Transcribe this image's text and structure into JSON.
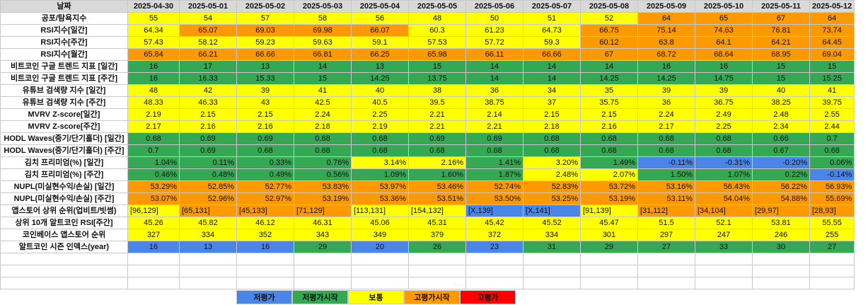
{
  "colors": {
    "blue": "#4a86e8",
    "green": "#34a853",
    "yellow": "#ffff00",
    "orange": "#ff9900",
    "red": "#ff0000",
    "white": "#ffffff",
    "header": "#d9d9d9"
  },
  "header": {
    "label": "날짜",
    "dates": [
      "2025-04-30",
      "2025-05-01",
      "2025-05-02",
      "2025-05-03",
      "2025-05-04",
      "2025-05-05",
      "2025-05-06",
      "2025-05-07",
      "2025-05-08",
      "2025-05-09",
      "2025-05-10",
      "2025-05-11",
      "2025-05-12"
    ]
  },
  "rows": [
    {
      "label": "공포/탐욕지수",
      "align": "c",
      "values": [
        "55",
        "54",
        "57",
        "58",
        "56",
        "48",
        "50",
        "51",
        "52",
        "64",
        "65",
        "67",
        "64"
      ],
      "colors": [
        "yellow",
        "yellow",
        "yellow",
        "yellow",
        "yellow",
        "yellow",
        "yellow",
        "yellow",
        "yellow",
        "orange",
        "orange",
        "orange",
        "orange"
      ]
    },
    {
      "label": "RSI지수[일간]",
      "align": "c",
      "values": [
        "64.34",
        "65.07",
        "69.03",
        "69.98",
        "66.07",
        "60.3",
        "61.23",
        "64.73",
        "66.75",
        "75.14",
        "74.63",
        "76.81",
        "73.74"
      ],
      "colors": [
        "yellow",
        "orange",
        "orange",
        "orange",
        "orange",
        "yellow",
        "yellow",
        "yellow",
        "orange",
        "orange",
        "orange",
        "orange",
        "orange"
      ]
    },
    {
      "label": "RSI지수[주간]",
      "align": "c",
      "values": [
        "57.43",
        "58.12",
        "59.23",
        "59.63",
        "59.1",
        "57.53",
        "57.72",
        "59.3",
        "60.12",
        "63.8",
        "64.1",
        "64.21",
        "64.45"
      ],
      "colors": [
        "yellow",
        "yellow",
        "yellow",
        "yellow",
        "yellow",
        "yellow",
        "yellow",
        "yellow",
        "orange",
        "orange",
        "orange",
        "orange",
        "orange"
      ]
    },
    {
      "label": "RSI지수[월간]",
      "align": "c",
      "values": [
        "65.84",
        "66.21",
        "66.66",
        "66.81",
        "66.25",
        "65.98",
        "66.11",
        "66.66",
        "67",
        "68.72",
        "68.64",
        "68.95",
        "69.04"
      ],
      "colors": [
        "orange",
        "orange",
        "orange",
        "orange",
        "orange",
        "orange",
        "orange",
        "orange",
        "orange",
        "orange",
        "orange",
        "orange",
        "orange"
      ]
    },
    {
      "label": "비트코인 구글 트렌드 지표 [일간]",
      "align": "c",
      "values": [
        "16",
        "17",
        "13",
        "14",
        "13",
        "15",
        "14",
        "14",
        "14",
        "16",
        "16",
        "15",
        "15"
      ],
      "colors": [
        "green",
        "green",
        "green",
        "green",
        "green",
        "green",
        "green",
        "green",
        "green",
        "green",
        "green",
        "green",
        "green"
      ]
    },
    {
      "label": "비트코인 구글 트렌드 지표 [주간]",
      "align": "c",
      "values": [
        "16",
        "16.33",
        "15.33",
        "15",
        "14.25",
        "13.75",
        "14",
        "14",
        "14.25",
        "14.25",
        "14.75",
        "15",
        "15.25"
      ],
      "colors": [
        "green",
        "green",
        "green",
        "green",
        "green",
        "green",
        "green",
        "green",
        "green",
        "green",
        "green",
        "green",
        "green"
      ]
    },
    {
      "label": "유튜브 검색량 지수 [일간]",
      "align": "c",
      "values": [
        "48",
        "42",
        "39",
        "41",
        "40",
        "38",
        "36",
        "34",
        "35",
        "39",
        "39",
        "40",
        "41"
      ],
      "colors": [
        "yellow",
        "yellow",
        "yellow",
        "yellow",
        "yellow",
        "yellow",
        "yellow",
        "yellow",
        "yellow",
        "yellow",
        "yellow",
        "yellow",
        "yellow"
      ]
    },
    {
      "label": "유튜브 검색량 지수 [주간]",
      "align": "c",
      "values": [
        "48.33",
        "46.33",
        "43",
        "42.5",
        "40.5",
        "39.5",
        "38.75",
        "37",
        "35.75",
        "36",
        "36.75",
        "38.25",
        "39.75"
      ],
      "colors": [
        "yellow",
        "yellow",
        "yellow",
        "yellow",
        "yellow",
        "yellow",
        "yellow",
        "yellow",
        "yellow",
        "yellow",
        "yellow",
        "yellow",
        "yellow"
      ]
    },
    {
      "label": "MVRV Z-score[일간]",
      "align": "c",
      "values": [
        "2.19",
        "2.15",
        "2.15",
        "2.24",
        "2.25",
        "2.21",
        "2.14",
        "2.15",
        "2.15",
        "2.24",
        "2.49",
        "2.48",
        "2.55"
      ],
      "colors": [
        "yellow",
        "yellow",
        "yellow",
        "yellow",
        "yellow",
        "yellow",
        "yellow",
        "yellow",
        "yellow",
        "yellow",
        "yellow",
        "yellow",
        "yellow"
      ]
    },
    {
      "label": "MVRV Z-score[주간]",
      "align": "c",
      "values": [
        "2.17",
        "2.16",
        "2.16",
        "2.18",
        "2.19",
        "2.21",
        "2.21",
        "2.18",
        "2.16",
        "2.17",
        "2.25",
        "2.34",
        "2.44"
      ],
      "colors": [
        "yellow",
        "yellow",
        "yellow",
        "yellow",
        "yellow",
        "yellow",
        "yellow",
        "yellow",
        "yellow",
        "yellow",
        "yellow",
        "yellow",
        "yellow"
      ]
    },
    {
      "label": "HODL Waves(중기/단기홀더) [일간]",
      "align": "c",
      "values": [
        "0.68",
        "0.69",
        "0.69",
        "0.68",
        "0.68",
        "0.69",
        "0.69",
        "0.68",
        "0.68",
        "0.68",
        "0.68",
        "0.66",
        "0.7"
      ],
      "colors": [
        "green",
        "green",
        "green",
        "green",
        "green",
        "green",
        "green",
        "green",
        "green",
        "green",
        "green",
        "green",
        "green"
      ]
    },
    {
      "label": "HODL Waves(중기/단기홀더) [주간]",
      "align": "c",
      "values": [
        "0.7",
        "0.69",
        "0.68",
        "0.68",
        "0.68",
        "0.68",
        "0.68",
        "0.68",
        "0.68",
        "0.68",
        "0.68",
        "0.67",
        "0.68"
      ],
      "colors": [
        "green",
        "green",
        "green",
        "green",
        "green",
        "green",
        "green",
        "green",
        "green",
        "green",
        "green",
        "green",
        "green"
      ]
    },
    {
      "label": "김치 프리미엄(%) [일간]",
      "align": "ra",
      "values": [
        "1.04%",
        "0.11%",
        "0.33%",
        "0.76%",
        "3.14%",
        "2.16%",
        "1.41%",
        "3.20%",
        "1.49%",
        "-0.11%",
        "-0.31%",
        "-0.20%",
        "0.06%"
      ],
      "colors": [
        "green",
        "green",
        "green",
        "green",
        "yellow",
        "yellow",
        "green",
        "yellow",
        "green",
        "blue",
        "blue",
        "blue",
        "green"
      ]
    },
    {
      "label": "김치 프리미엄(%) [주간]",
      "align": "ra",
      "values": [
        "0.46%",
        "0.48%",
        "0.49%",
        "0.56%",
        "1.09%",
        "1.60%",
        "1.87%",
        "2.48%",
        "2.07%",
        "1.50%",
        "1.07%",
        "0.22%",
        "-0.14%"
      ],
      "colors": [
        "green",
        "green",
        "green",
        "green",
        "green",
        "green",
        "green",
        "yellow",
        "yellow",
        "green",
        "green",
        "green",
        "blue"
      ]
    },
    {
      "label": "NUPL(미실현수익/손실) [일간]",
      "align": "ra",
      "values": [
        "53.29%",
        "52.85%",
        "52.77%",
        "53.83%",
        "53.97%",
        "53.46%",
        "52.74%",
        "52.83%",
        "53.72%",
        "53.16%",
        "56.43%",
        "56.22%",
        "56.93%"
      ],
      "colors": [
        "orange",
        "orange",
        "orange",
        "orange",
        "orange",
        "orange",
        "orange",
        "orange",
        "orange",
        "orange",
        "orange",
        "orange",
        "orange"
      ]
    },
    {
      "label": "NUPL(미실현수익/손실) [주간]",
      "align": "ra",
      "values": [
        "53.07%",
        "52.96%",
        "52.97%",
        "53.19%",
        "53.36%",
        "53.51%",
        "53.50%",
        "53.25%",
        "53.19%",
        "53.11%",
        "54.04%",
        "54.88%",
        "55.69%"
      ],
      "colors": [
        "orange",
        "orange",
        "orange",
        "orange",
        "orange",
        "orange",
        "orange",
        "orange",
        "orange",
        "orange",
        "orange",
        "orange",
        "orange"
      ]
    },
    {
      "label": "앱스토어 상위 순위(업비트/빗썸)",
      "align": "la",
      "values": [
        "[96,129]",
        "[65,131]",
        "[45,133]",
        "[71,129]",
        "[113,131]",
        "[154,132]",
        "[X,139]",
        "[X,141]",
        "[91,139]",
        "[31,112]",
        "[34,104]",
        "[29,97]",
        "[28,93]"
      ],
      "colors": [
        "yellow",
        "orange",
        "orange",
        "orange",
        "yellow",
        "yellow",
        "blue",
        "blue",
        "yellow",
        "orange",
        "orange",
        "orange",
        "orange"
      ]
    },
    {
      "label": "상위 10개 알트코인 RSI[주간]",
      "align": "c",
      "values": [
        "45.26",
        "45.82",
        "46.12",
        "46.31",
        "45.06",
        "45.31",
        "45.42",
        "45.52",
        "45.47",
        "51.5",
        "52.1",
        "53.81",
        "55.55"
      ],
      "colors": [
        "yellow",
        "yellow",
        "yellow",
        "yellow",
        "yellow",
        "yellow",
        "yellow",
        "yellow",
        "yellow",
        "yellow",
        "yellow",
        "yellow",
        "yellow"
      ]
    },
    {
      "label": "코인베이스 앱스토어 순위",
      "align": "c",
      "values": [
        "327",
        "334",
        "352",
        "343",
        "349",
        "379",
        "372",
        "334",
        "301",
        "297",
        "247",
        "246",
        "255"
      ],
      "colors": [
        "yellow",
        "yellow",
        "yellow",
        "yellow",
        "yellow",
        "yellow",
        "yellow",
        "yellow",
        "yellow",
        "yellow",
        "yellow",
        "yellow",
        "yellow"
      ]
    },
    {
      "label": "알트코인 시즌 인덱스(year)",
      "align": "c",
      "values": [
        "16",
        "13",
        "16",
        "29",
        "20",
        "26",
        "23",
        "31",
        "29",
        "27",
        "33",
        "30",
        "27"
      ],
      "colors": [
        "blue",
        "blue",
        "blue",
        "green",
        "blue",
        "green",
        "blue",
        "green",
        "green",
        "green",
        "green",
        "green",
        "green"
      ]
    }
  ],
  "legend": [
    {
      "label": "저평가",
      "color": "blue"
    },
    {
      "label": "저평가시작",
      "color": "green"
    },
    {
      "label": "보통",
      "color": "yellow"
    },
    {
      "label": "고평가시작",
      "color": "orange"
    },
    {
      "label": "고평가",
      "color": "red"
    }
  ]
}
